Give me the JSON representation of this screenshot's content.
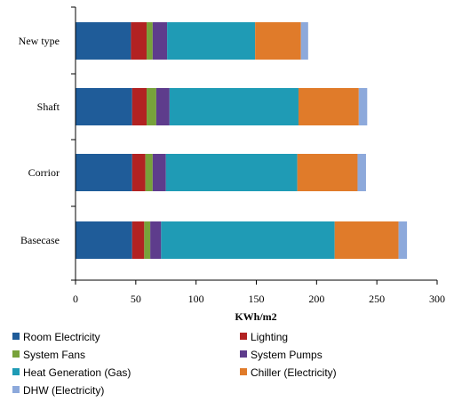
{
  "chart_data": {
    "type": "bar",
    "orientation": "horizontal",
    "stacked": true,
    "title": "",
    "xlabel": "KWh/m2",
    "ylabel": "",
    "xlim": [
      0,
      300
    ],
    "xticks": [
      0,
      50,
      100,
      150,
      200,
      250,
      300
    ],
    "grid": false,
    "legend_position": "bottom",
    "categories": [
      "New type",
      "Shaft",
      "Corrior",
      "Basecase"
    ],
    "series": [
      {
        "name": "Room Electricity",
        "color": "#1F5C99",
        "values": [
          46,
          47,
          47,
          47
        ]
      },
      {
        "name": "Lighting",
        "color": "#B22222",
        "values": [
          13,
          12,
          11,
          10
        ]
      },
      {
        "name": "System Fans",
        "color": "#77A23A",
        "values": [
          5,
          8,
          6,
          5
        ]
      },
      {
        "name": "System Pumps",
        "color": "#5E3C8C",
        "values": [
          12,
          11,
          11,
          9
        ]
      },
      {
        "name": "Heat Generation (Gas)",
        "color": "#1F9BB5",
        "values": [
          73,
          107,
          109,
          144
        ]
      },
      {
        "name": "Chiller (Electricity)",
        "color": "#E07B2A",
        "values": [
          38,
          50,
          50,
          53
        ]
      },
      {
        "name": "DHW (Electricity)",
        "color": "#8DA9DB",
        "values": [
          6,
          7,
          7,
          7
        ]
      }
    ]
  }
}
